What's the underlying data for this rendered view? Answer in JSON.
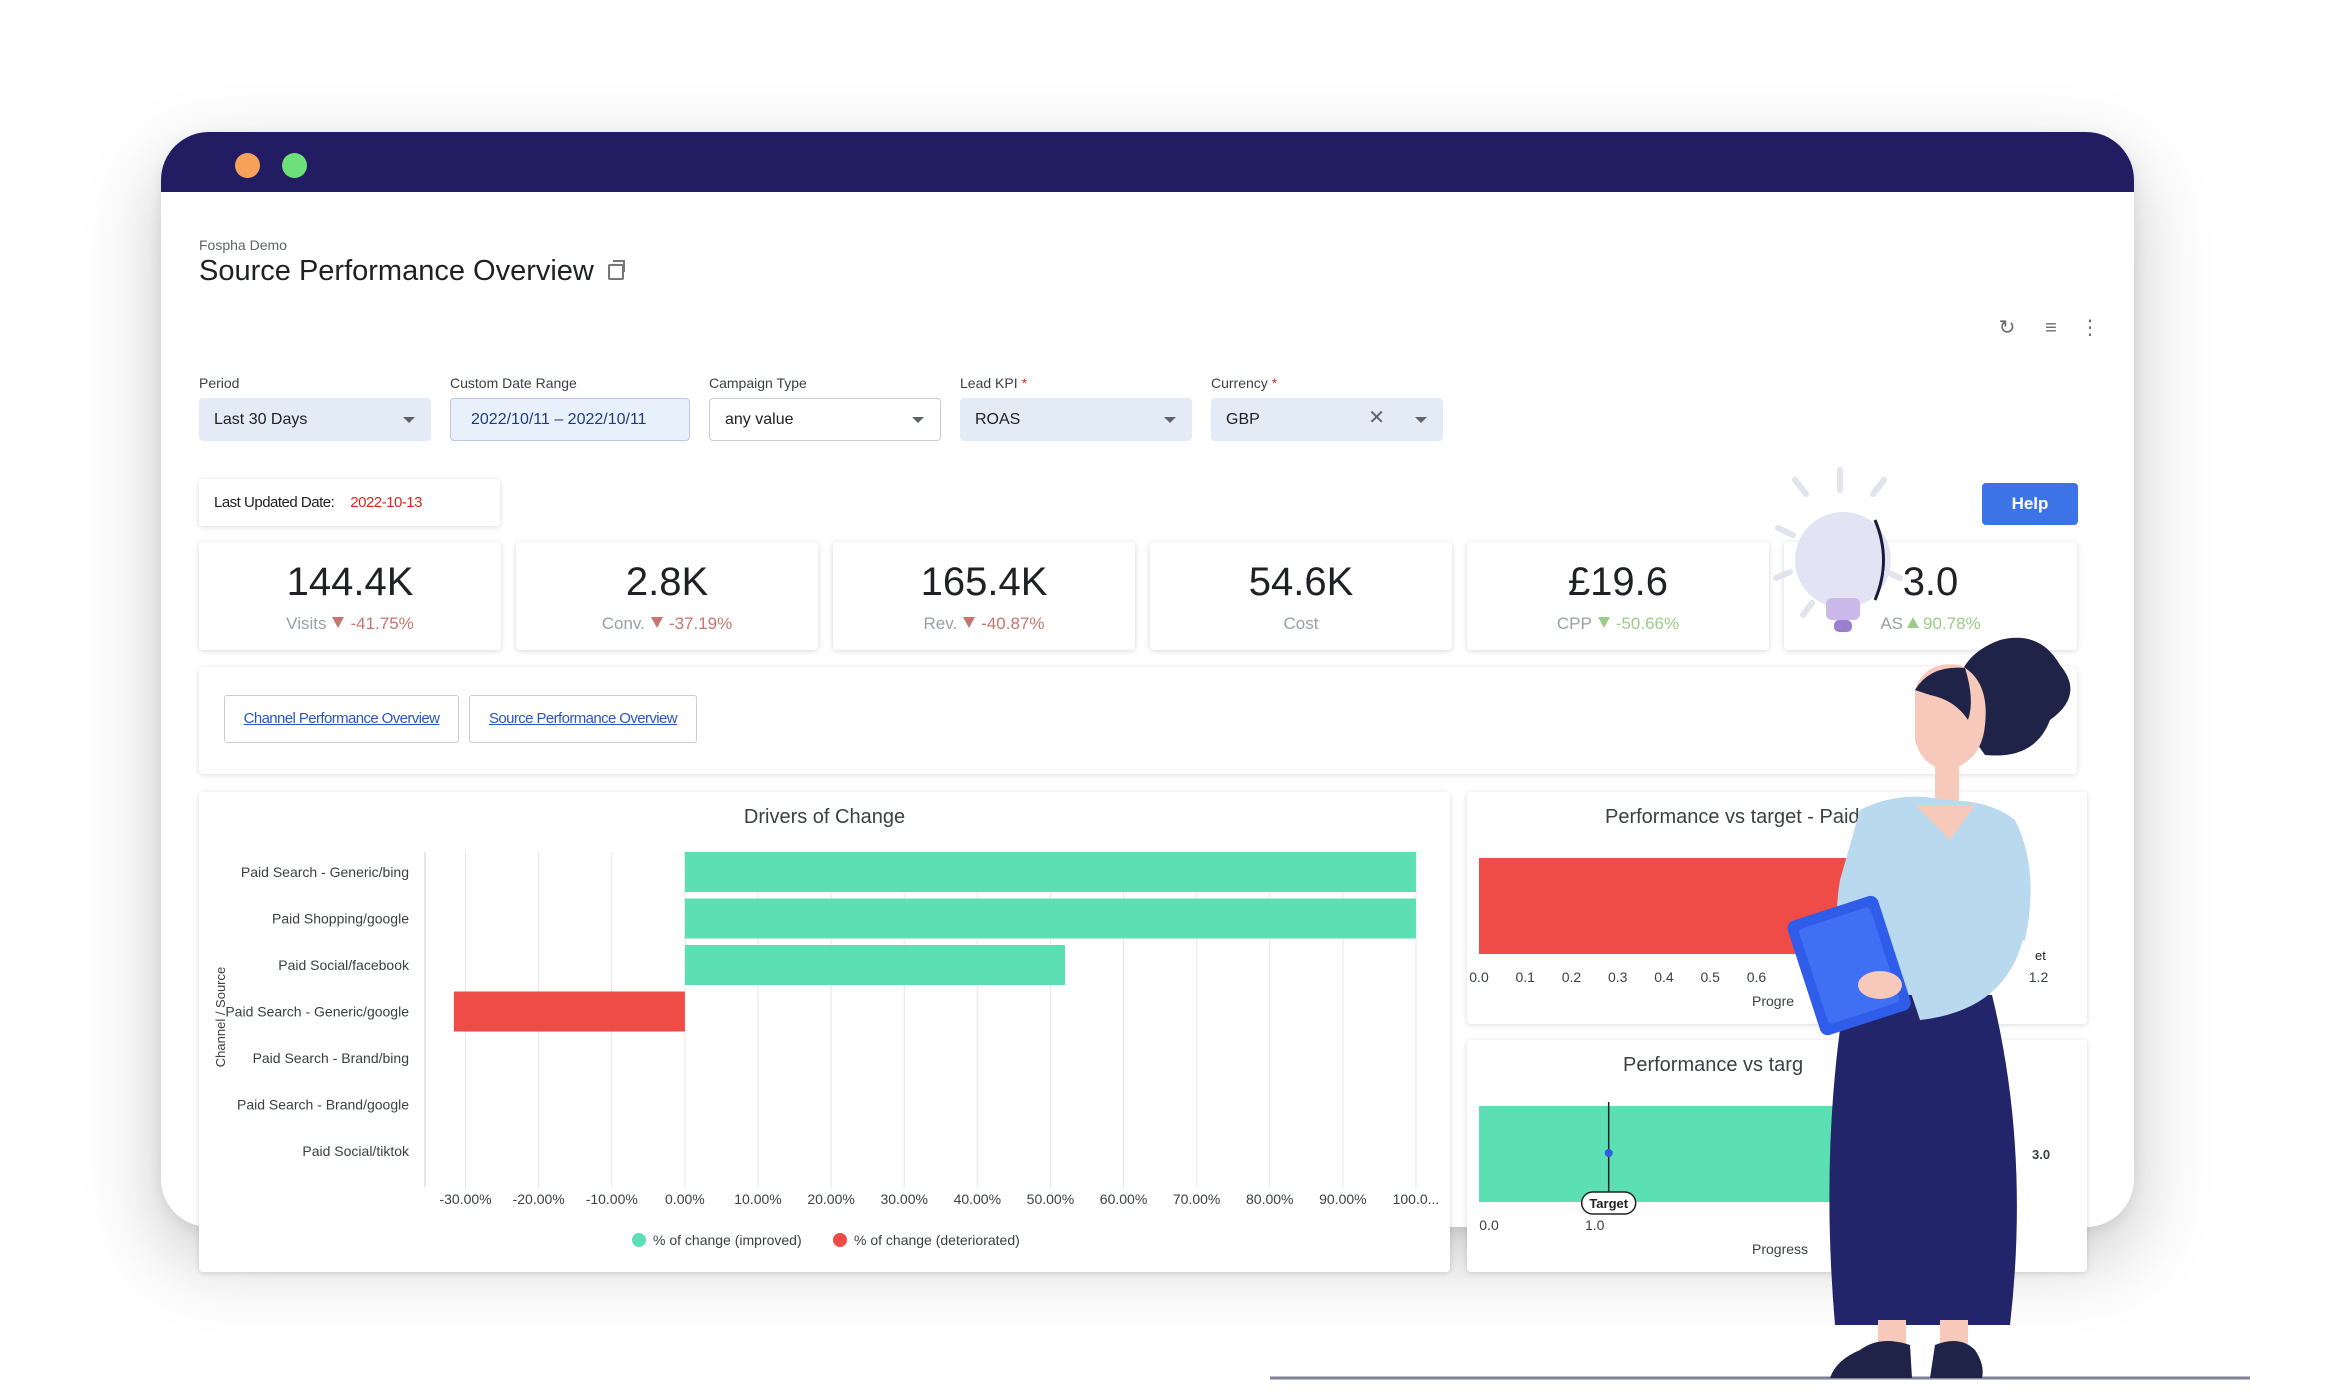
{
  "header": {
    "breadcrumb": "Fospha Demo",
    "title": "Source Performance Overview"
  },
  "top_actions": [
    {
      "icon": "refresh-icon",
      "glyph": "↻"
    },
    {
      "icon": "filter-icon",
      "glyph": "≣"
    },
    {
      "icon": "more-vert-icon",
      "glyph": "⋮"
    }
  ],
  "filters": {
    "period": {
      "label": "Period",
      "value": "Last 30 Days"
    },
    "custom_date_range": {
      "label": "Custom Date Range",
      "value": "2022/10/11 – 2022/10/11"
    },
    "campaign_type": {
      "label": "Campaign Type",
      "value": "any value"
    },
    "lead_kpi": {
      "label": "Lead KPI",
      "required": "*",
      "value": "ROAS"
    },
    "currency": {
      "label": "Currency",
      "required": "*",
      "value": "GBP",
      "clear": "✕"
    }
  },
  "last_updated": {
    "label": "Last Updated Date:",
    "value": "2022-10-13"
  },
  "help_button": "Help",
  "kpis": [
    {
      "value": "144.4K",
      "label": "Visits",
      "change": "-41.75%",
      "direction": "down",
      "color": "#c7766f"
    },
    {
      "value": "2.8K",
      "label": "Conv.",
      "change": "-37.19%",
      "direction": "down",
      "color": "#c7766f"
    },
    {
      "value": "165.4K",
      "label": "Rev.",
      "change": "-40.87%",
      "direction": "down",
      "color": "#c7766f"
    },
    {
      "value": "54.6K",
      "label": "Cost",
      "change": "",
      "direction": "none",
      "color": "#9aa0a6"
    },
    {
      "value": "£19.6",
      "label": "CPP",
      "change": "-50.66%",
      "direction": "down-good",
      "color": "#9ccc8a"
    },
    {
      "value": "3.0",
      "label": "AS",
      "change": "90.78%",
      "direction": "up",
      "color": "#9ccc8a"
    }
  ],
  "nav_links": [
    "Channel Performance Overview",
    "Source Performance Overview"
  ],
  "colors": {
    "titlebar": "#221c62",
    "improved": "#5ce0b3",
    "deteriorated": "#ef4b47",
    "accent": "#3c74e8"
  },
  "chart_data": [
    {
      "type": "bar",
      "orientation": "horizontal",
      "title": "Drivers of Change",
      "ylabel": "Channel / Source",
      "categories": [
        "Paid Search - Generic/bing",
        "Paid Shopping/google",
        "Paid Social/facebook",
        "Paid Search - Generic/google",
        "Paid Search - Brand/bing",
        "Paid Search - Brand/google",
        "Paid Social/tiktok"
      ],
      "series": [
        {
          "name": "% of change (improved)",
          "values": [
            100,
            100,
            52,
            0,
            0,
            0,
            0
          ]
        },
        {
          "name": "% of change (deteriorated)",
          "values": [
            0,
            0,
            0,
            -31.6,
            0,
            0,
            0
          ]
        }
      ],
      "x_ticks": [
        "-30.00%",
        "-20.00%",
        "-10.00%",
        "0.00%",
        "10.00%",
        "20.00%",
        "30.00%",
        "40.00%",
        "50.00%",
        "60.00%",
        "70.00%",
        "80.00%",
        "90.00%",
        "100.0..."
      ],
      "xlim": [
        -35,
        100
      ],
      "legend": "bottom"
    },
    {
      "type": "bar",
      "orientation": "horizontal",
      "title": "Performance vs target - Paid M",
      "xlabel": "Progre",
      "value": 0.85,
      "target": 1.1,
      "x_ticks": [
        "0.0",
        "0.1",
        "0.2",
        "0.3",
        "0.4",
        "0.5",
        "0.6",
        "0",
        "1.2"
      ],
      "target_label": "et"
    },
    {
      "type": "bar",
      "orientation": "horizontal",
      "title": "Performance vs targ",
      "xlabel": "Progress",
      "value": 3.0,
      "target": 1.0,
      "value_label": "3.0",
      "x_ticks": [
        "0.0",
        "1.0"
      ],
      "target_label": "Target"
    }
  ]
}
